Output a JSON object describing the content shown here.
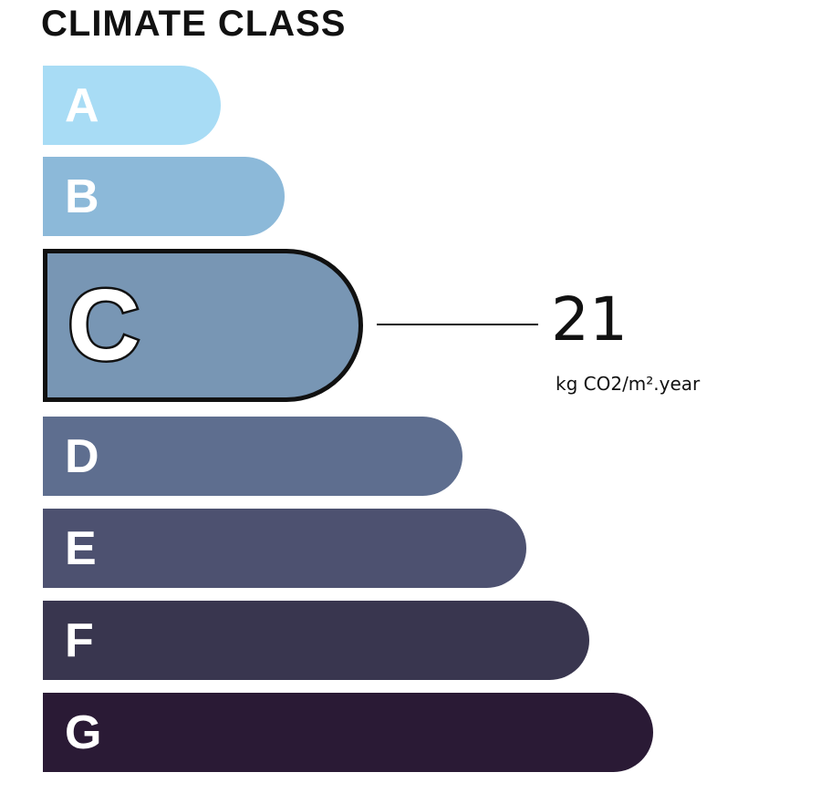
{
  "title": "CLIMATE CLASS",
  "classes": [
    {
      "label": "A",
      "color": "#a8dcf5"
    },
    {
      "label": "B",
      "color": "#8cb9d9"
    },
    {
      "label": "C",
      "color": "#7896b4"
    },
    {
      "label": "D",
      "color": "#5e6e8f"
    },
    {
      "label": "E",
      "color": "#4d5170"
    },
    {
      "label": "F",
      "color": "#39364f"
    },
    {
      "label": "G",
      "color": "#2a1a35"
    }
  ],
  "current_class": "C",
  "value": "21",
  "unit": "kg CO2/m².year"
}
